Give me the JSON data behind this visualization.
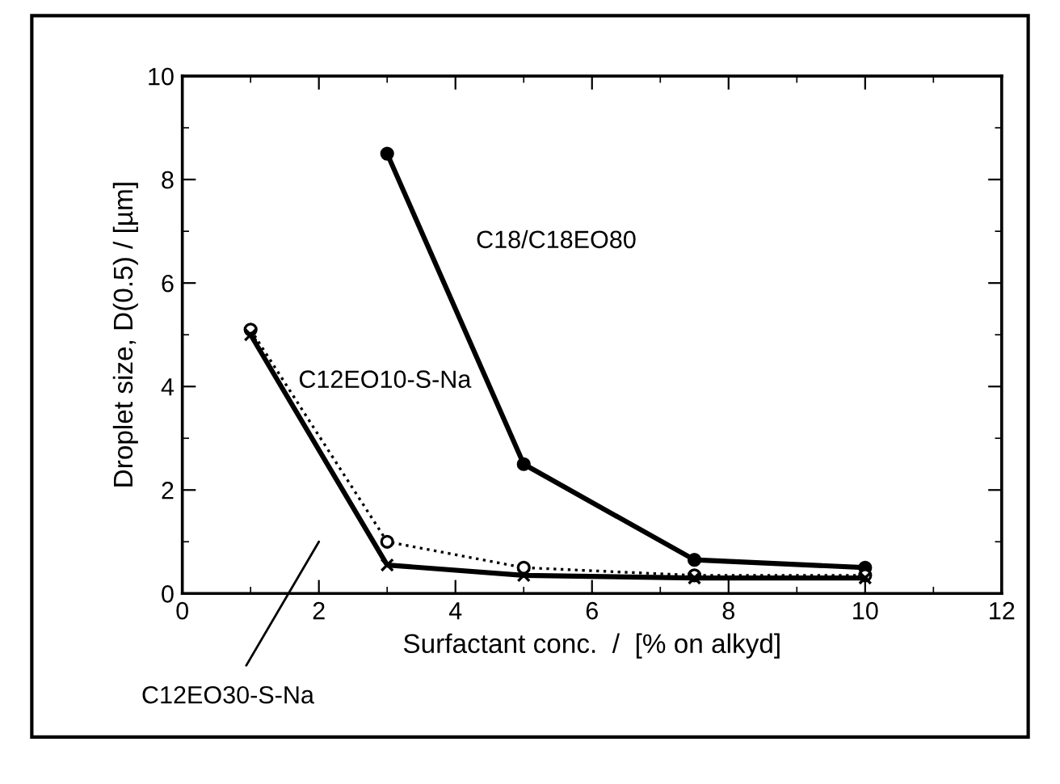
{
  "chart_data": {
    "type": "line",
    "xlabel": "Surfactant conc.  /  [% on alkyd]",
    "ylabel": "Droplet size, D(0.5) / [µm]",
    "x": [
      1,
      3,
      5,
      7.5,
      10
    ],
    "series": [
      {
        "name": "C18/C18EO80",
        "color": "#000000",
        "values": [
          null,
          8.5,
          2.5,
          0.65,
          0.5
        ],
        "marker": "circle",
        "line_style": "solid"
      },
      {
        "name": "C12EO10-S-Na",
        "color": "#000000",
        "values": [
          5.1,
          1.0,
          0.5,
          0.35,
          0.35
        ],
        "marker": "circle",
        "line_style": "dotted"
      },
      {
        "name": "C12EO30-S-Na",
        "color": "#000000",
        "values": [
          5.0,
          0.55,
          0.35,
          0.3,
          0.3
        ],
        "marker": "cross",
        "line_style": "solid"
      }
    ],
    "xlim": [
      0,
      12
    ],
    "xticks": [
      0,
      2,
      4,
      6,
      8,
      10,
      12
    ],
    "ylim": [
      0,
      10
    ],
    "yticks": [
      0,
      2,
      4,
      6,
      8,
      10
    ],
    "grid": false
  }
}
